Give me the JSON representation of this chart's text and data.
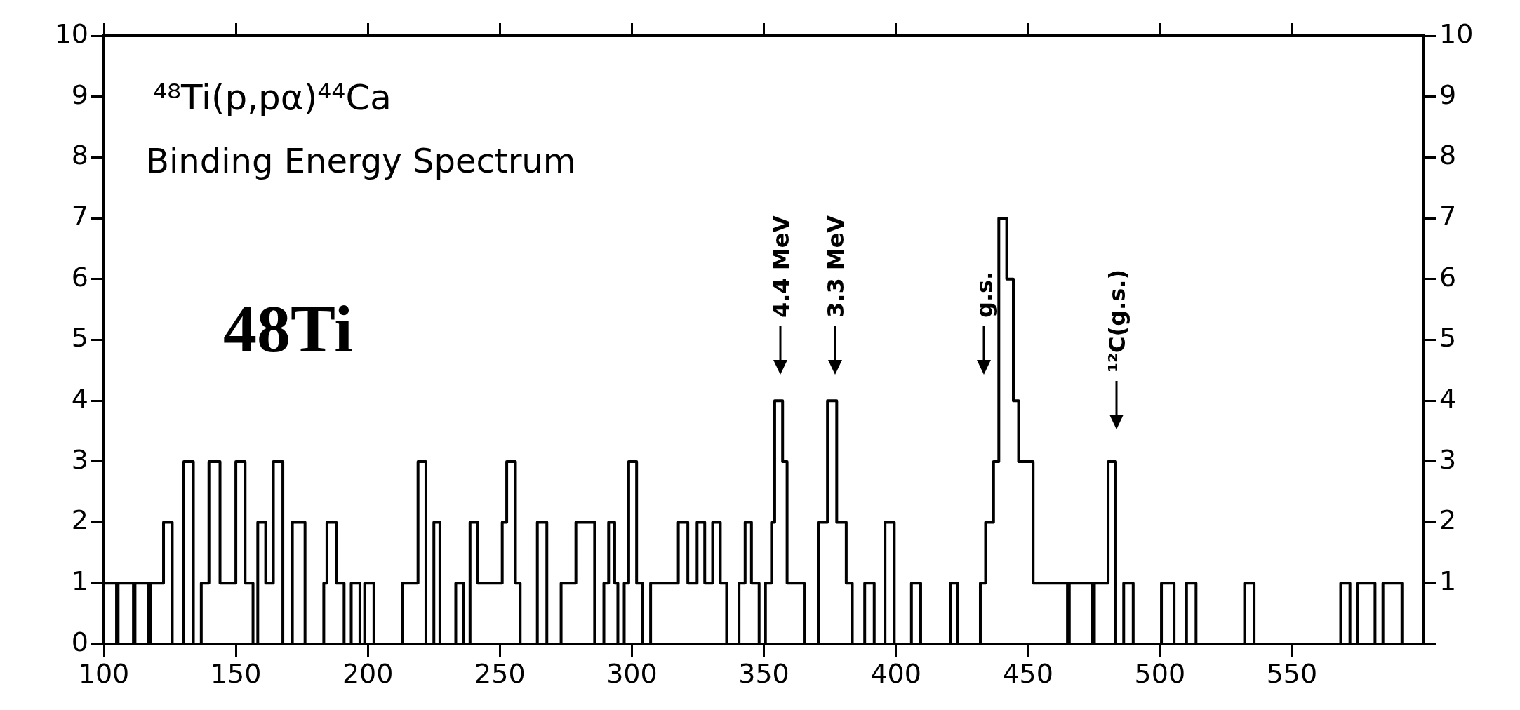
{
  "chart_data": {
    "type": "step",
    "title": "⁴⁸Ti(p,pα)⁴⁴Ca",
    "subtitle": "Binding Energy Spectrum",
    "annotations": [
      "48Ti",
      "4.4 MeV",
      "3.3 MeV",
      "g.s.",
      "¹²C(g.s.)"
    ],
    "series": [
      {
        "color": "#000000",
        "x": [
          100,
          104.8,
          105.4,
          111.2,
          111.8,
          117,
          117.6,
          122.6,
          125.9,
          130.3,
          133.9,
          136.9,
          139.8,
          144,
          150,
          153.5,
          156.5,
          158.3,
          161.3,
          164.2,
          167.8,
          171.4,
          176.2,
          183.3,
          184.5,
          188,
          191,
          193.7,
          197,
          198.8,
          202.3,
          213,
          219,
          222,
          225,
          227.3,
          233.3,
          236.3,
          238.7,
          241.6,
          250.9,
          252.6,
          255.9,
          257.7,
          264.2,
          267.8,
          273.2,
          278.8,
          285.9,
          289.4,
          291.2,
          293.5,
          294.7,
          297.1,
          298.8,
          301.8,
          304.1,
          307.1,
          317.6,
          321.2,
          324.7,
          327.6,
          330.6,
          333.5,
          335.9,
          340.6,
          342.9,
          345.3,
          348.2,
          350.6,
          352.9,
          354.1,
          357.1,
          358.8,
          365.3,
          370.6,
          374.1,
          377.6,
          381.2,
          383.5,
          388.2,
          391.8,
          395.9,
          399.4,
          405.9,
          409.4,
          420.6,
          423.5,
          432,
          434,
          437,
          439,
          442,
          444.5,
          446.5,
          452,
          465,
          465.7,
          474.5,
          475.2,
          480.4,
          483.3,
          486.3,
          489.9,
          500.6,
          505.4,
          510.1,
          513.7,
          532.1,
          535.7,
          568.5,
          572,
          575,
          581.5,
          584.5,
          591.7,
          600
        ],
        "values": [
          1,
          0,
          1,
          0,
          1,
          0,
          1,
          2,
          0,
          3,
          0,
          1,
          3,
          1,
          3,
          1,
          0,
          2,
          1,
          3,
          0,
          2,
          0,
          1,
          2,
          1,
          0,
          1,
          0,
          1,
          0,
          1,
          3,
          0,
          2,
          0,
          1,
          0,
          2,
          1,
          2,
          3,
          1,
          0,
          2,
          0,
          1,
          2,
          0,
          1,
          2,
          1,
          0,
          1,
          3,
          1,
          0,
          1,
          2,
          1,
          2,
          1,
          2,
          1,
          0,
          1,
          2,
          1,
          0,
          1,
          2,
          4,
          3,
          1,
          0,
          2,
          4,
          2,
          1,
          0,
          1,
          0,
          2,
          0,
          1,
          0,
          1,
          0,
          1,
          2,
          3,
          7,
          6,
          4,
          3,
          1,
          0,
          1,
          0,
          1,
          3,
          0,
          1,
          0,
          1,
          0,
          1,
          0,
          1,
          0,
          1,
          0,
          1,
          0,
          1,
          0,
          0
        ]
      }
    ],
    "marker": "none",
    "xlim": [
      100,
      600
    ],
    "xticks": [
      100,
      150,
      200,
      250,
      300,
      350,
      400,
      450,
      500,
      550
    ],
    "ylim": [
      0,
      10
    ],
    "yticks": [
      0,
      1,
      2,
      3,
      4,
      5,
      6,
      7,
      8,
      9,
      10
    ],
    "y2lim": [
      0,
      10
    ],
    "y2ticks": [
      {
        "value": 0,
        "label": null
      },
      1,
      2,
      3,
      4,
      5,
      6,
      7,
      8,
      9,
      10
    ],
    "grid": false
  }
}
